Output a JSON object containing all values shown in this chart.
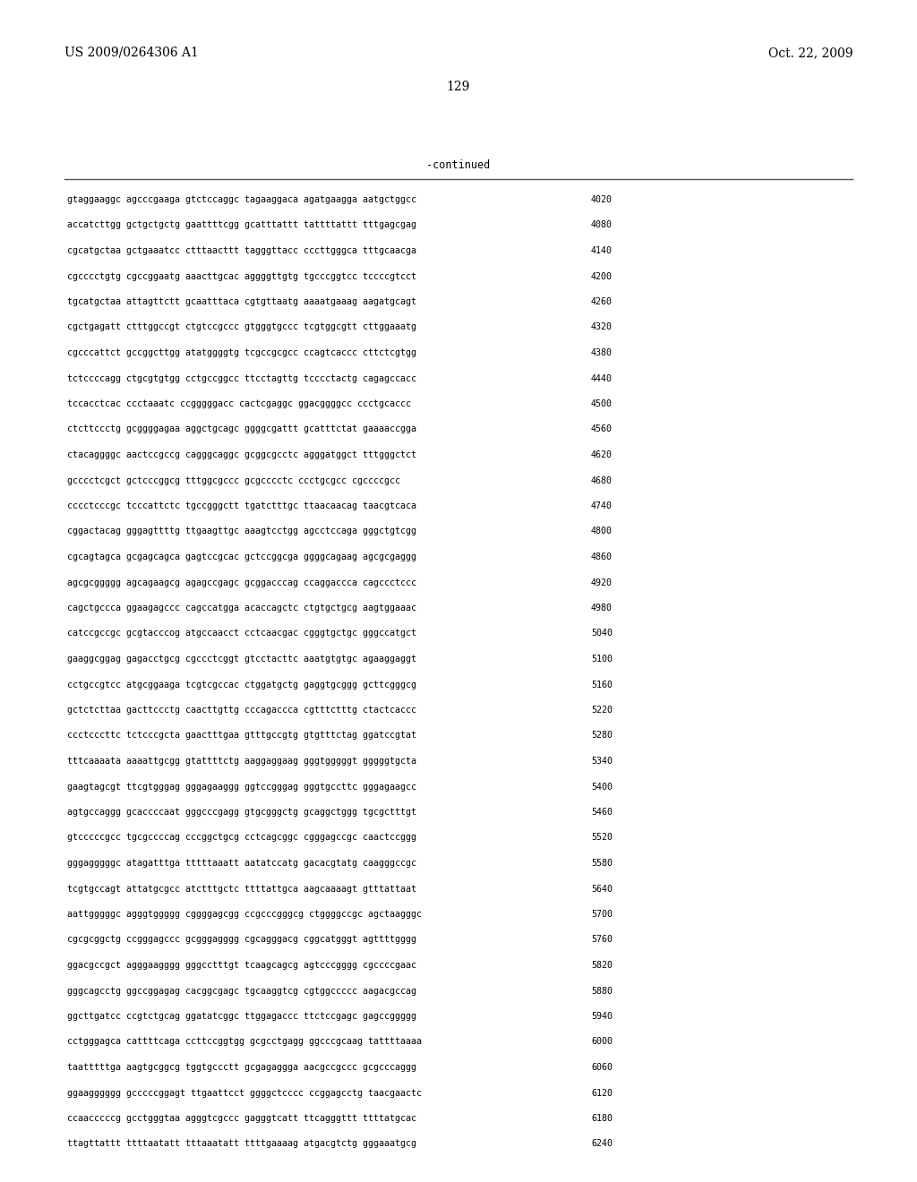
{
  "patent_number": "US 2009/0264306 A1",
  "date": "Oct. 22, 2009",
  "page_number": "129",
  "continued_label": "-continued",
  "background_color": "#ffffff",
  "text_color": "#000000",
  "sequence_lines": [
    {
      "seq": "gtaggaaggc agcccgaaga gtctccaggc tagaaggaca agatgaagga aatgctggcc",
      "num": "4020"
    },
    {
      "seq": "accatcttgg gctgctgctg gaattttcgg gcatttattt tattttattt tttgagcgag",
      "num": "4080"
    },
    {
      "seq": "cgcatgctaa gctgaaatcc ctttaacttt tagggttacc cccttgggca tttgcaacga",
      "num": "4140"
    },
    {
      "seq": "cgcccctgtg cgccggaatg aaacttgcac aggggttgtg tgcccggtcc tccccgtcct",
      "num": "4200"
    },
    {
      "seq": "tgcatgctaa attagttctt gcaatttaca cgtgttaatg aaaatgaaag aagatgcagt",
      "num": "4260"
    },
    {
      "seq": "cgctgagatt ctttggccgt ctgtccgccc gtgggtgccc tcgtggcgtt cttggaaatg",
      "num": "4320"
    },
    {
      "seq": "cgcccattct gccggcttgg atatggggtg tcgccgcgcc ccagtcaccc cttctcgtgg",
      "num": "4380"
    },
    {
      "seq": "tctccccagg ctgcgtgtgg cctgccggcc ttcctagttg tcccctactg cagagccacc",
      "num": "4440"
    },
    {
      "seq": "tccacctcac ccctaaatc ccgggggacc cactcgaggc ggacggggcc ccctgcaccc",
      "num": "4500"
    },
    {
      "seq": "ctcttccctg gcggggagaa aggctgcagc ggggcgattt gcatttctat gaaaaccgga",
      "num": "4560"
    },
    {
      "seq": "ctacaggggc aactccgccg cagggcaggc gcggcgcctc agggatggct tttgggctct",
      "num": "4620"
    },
    {
      "seq": "gcccctcgct gctcccggcg tttggcgccc gcgcccctc ccctgcgcc cgccccgcc",
      "num": "4680"
    },
    {
      "seq": "cccctcccgc tcccattctc tgccgggctt tgatctttgc ttaacaacag taacgtcaca",
      "num": "4740"
    },
    {
      "seq": "cggactacag gggagttttg ttgaagttgc aaagtcctgg agcctccaga gggctgtcgg",
      "num": "4800"
    },
    {
      "seq": "cgcagtagca gcgagcagca gagtccgcac gctccggcga ggggcagaag agcgcgaggg",
      "num": "4860"
    },
    {
      "seq": "agcgcggggg agcagaagcg agagccgagc gcggacccag ccaggaccca cagccctccc",
      "num": "4920"
    },
    {
      "seq": "cagctgccca ggaagagccc cagccatgga acaccagctc ctgtgctgcg aagtggaaac",
      "num": "4980"
    },
    {
      "seq": "catccgccgc gcgtacccog atgccaacct cctcaacgac cgggtgctgc gggccatgct",
      "num": "5040"
    },
    {
      "seq": "gaaggcggag gagacctgcg cgccctcggt gtcctacttc aaatgtgtgc agaaggaggt",
      "num": "5100"
    },
    {
      "seq": "cctgccgtcc atgcggaaga tcgtcgccac ctggatgctg gaggtgcggg gcttcgggcg",
      "num": "5160"
    },
    {
      "seq": "gctctcttaa gacttccctg caacttgttg cccagaccca cgtttctttg ctactcaccc",
      "num": "5220"
    },
    {
      "seq": "ccctcccttc tctcccgcta gaactttgaa gtttgccgtg gtgtttctag ggatccgtat",
      "num": "5280"
    },
    {
      "seq": "tttcaaaata aaaattgcgg gtattttctg aaggaggaag gggtgggggt gggggtgcta",
      "num": "5340"
    },
    {
      "seq": "gaagtagcgt ttcgtgggag gggagaaggg ggtccgggag gggtgccttc gggagaagcc",
      "num": "5400"
    },
    {
      "seq": "agtgccaggg gcaccccaat gggcccgagg gtgcgggctg gcaggctggg tgcgctttgt",
      "num": "5460"
    },
    {
      "seq": "gtcccccgcc tgcgccccag cccggctgcg cctcagcggc cgggagccgc caactccggg",
      "num": "5520"
    },
    {
      "seq": "gggagggggc atagatttga tttttaaatt aatatccatg gacacgtatg caagggccgc",
      "num": "5580"
    },
    {
      "seq": "tcgtgccagt attatgcgcc atctttgctc ttttattgca aagcaaaagt gtttattaat",
      "num": "5640"
    },
    {
      "seq": "aattgggggc agggtggggg cggggagcgg ccgcccgggcg ctggggccgc agctaagggc",
      "num": "5700"
    },
    {
      "seq": "cgcgcggctg ccgggagccc gcgggagggg cgcagggacg cggcatgggt agttttgggg",
      "num": "5760"
    },
    {
      "seq": "ggacgccgct agggaagggg gggcctttgt tcaagcagcg agtcccgggg cgccccgaac",
      "num": "5820"
    },
    {
      "seq": "gggcagcctg ggccggagag cacggcgagc tgcaaggtcg cgtggccccc aagacgccag",
      "num": "5880"
    },
    {
      "seq": "ggcttgatcc ccgtctgcag ggatatcggc ttggagaccc ttctccgagc gagccggggg",
      "num": "5940"
    },
    {
      "seq": "cctgggagca cattttcaga ccttccggtgg gcgcctgagg ggcccgcaag tattttaaaa",
      "num": "6000"
    },
    {
      "seq": "taatttttga aagtgcggcg tggtgccctt gcgagaggga aacgccgccc gcgcccaggg",
      "num": "6060"
    },
    {
      "seq": "ggaagggggg gcccccggagt ttgaattcct ggggctcccc ccggagcctg taacgaactc",
      "num": "6120"
    },
    {
      "seq": "ccaacccccg gcctgggtaa agggtcgccc gagggtcatt ttcagggttt ttttatgcac",
      "num": "6180"
    },
    {
      "seq": "ttagttattt ttttaatatt tttaaatatt ttttgaaaag atgacgtctg gggaaatgcg",
      "num": "6240"
    }
  ]
}
